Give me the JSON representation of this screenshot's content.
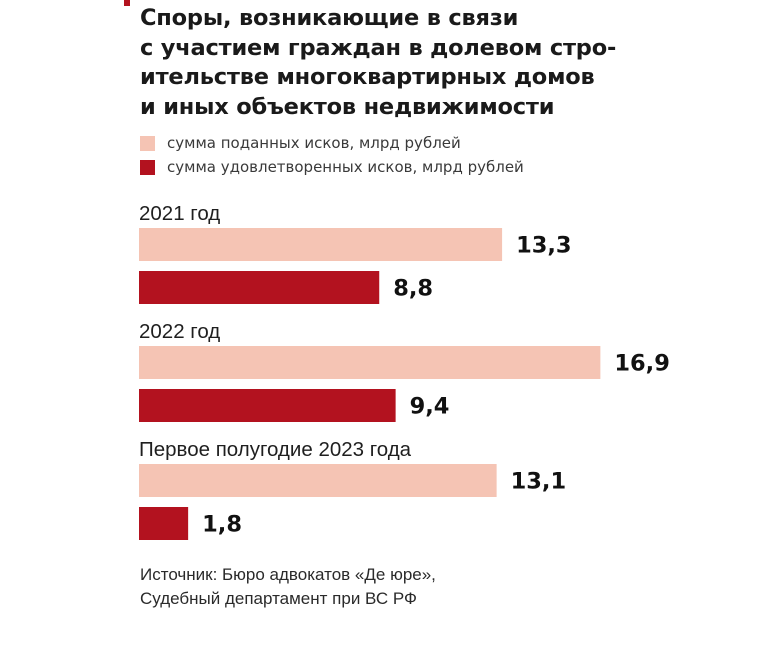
{
  "colors": {
    "filed": "#f5c4b4",
    "satisfied": "#b3121f",
    "accent": "#b3121f"
  },
  "chart_data": {
    "type": "bar",
    "orientation": "horizontal",
    "title": "Споры, возникающие в связи\nс участием граждан в долевом стро-\nительстве многоквартирных домов\nи иных объектов недвижимости",
    "categories": [
      "2021 год",
      "2022 год",
      "Первое полугодие 2023 года"
    ],
    "series": [
      {
        "name": "сумма поданных исков, млрд рублей",
        "color": "#f5c4b4",
        "values": [
          13.3,
          16.9,
          13.1
        ],
        "labels": [
          "13,3",
          "16,9",
          "13,1"
        ]
      },
      {
        "name": "сумма удовлетворенных исков, млрд рублей",
        "color": "#b3121f",
        "values": [
          8.8,
          9.4,
          1.8
        ],
        "labels": [
          "8,8",
          "9,4",
          "1,8"
        ]
      }
    ],
    "legend_position": "top-left",
    "grid": false
  },
  "source": "Источник: Бюро адвокатов «Де юре»,\nСудебный департамент при ВС РФ"
}
